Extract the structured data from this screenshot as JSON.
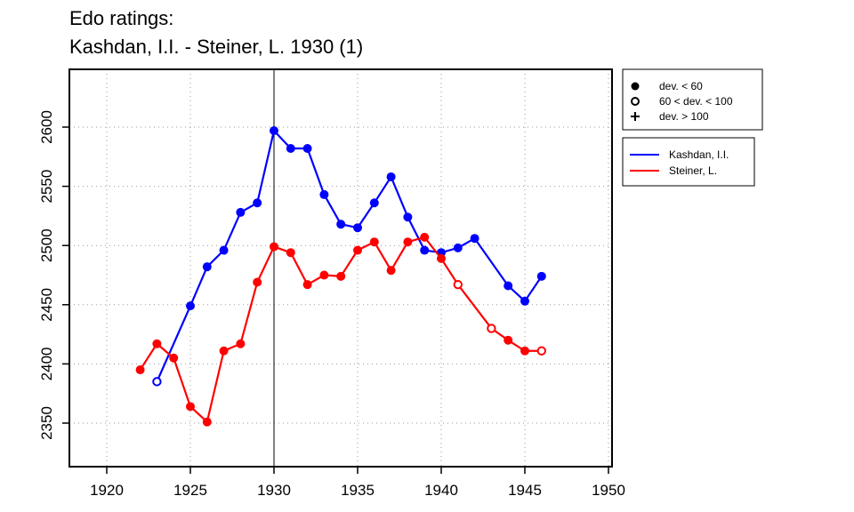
{
  "title_line1": "Edo ratings:",
  "title_line2": "Kashdan, I.I. - Steiner, L. 1930 (1)",
  "chart_data": {
    "type": "line",
    "xlim": [
      1918,
      1950
    ],
    "ylim": [
      2320,
      2650
    ],
    "x_ticks": [
      1920,
      1925,
      1930,
      1935,
      1940,
      1945,
      1950
    ],
    "y_ticks": [
      2350,
      2400,
      2450,
      2500,
      2550,
      2600
    ],
    "grid": true,
    "reference_line_x": 1930,
    "symbol_legend": [
      {
        "symbol": "filled-circle",
        "label": "dev. < 60"
      },
      {
        "symbol": "open-circle",
        "label": "60 < dev. < 100"
      },
      {
        "symbol": "plus",
        "label": "dev. > 100"
      }
    ],
    "series": [
      {
        "name": "Kashdan, I.I.",
        "color": "#0000ff",
        "points": [
          {
            "x": 1923,
            "y": 2385,
            "dev": "open"
          },
          {
            "x": 1925,
            "y": 2449,
            "dev": "filled"
          },
          {
            "x": 1926,
            "y": 2482,
            "dev": "filled"
          },
          {
            "x": 1927,
            "y": 2496,
            "dev": "filled"
          },
          {
            "x": 1928,
            "y": 2528,
            "dev": "filled"
          },
          {
            "x": 1929,
            "y": 2536,
            "dev": "filled"
          },
          {
            "x": 1930,
            "y": 2597,
            "dev": "filled"
          },
          {
            "x": 1931,
            "y": 2582,
            "dev": "filled"
          },
          {
            "x": 1932,
            "y": 2582,
            "dev": "filled"
          },
          {
            "x": 1933,
            "y": 2543,
            "dev": "filled"
          },
          {
            "x": 1934,
            "y": 2518,
            "dev": "filled"
          },
          {
            "x": 1935,
            "y": 2515,
            "dev": "filled"
          },
          {
            "x": 1936,
            "y": 2536,
            "dev": "filled"
          },
          {
            "x": 1937,
            "y": 2558,
            "dev": "filled"
          },
          {
            "x": 1938,
            "y": 2524,
            "dev": "filled"
          },
          {
            "x": 1939,
            "y": 2496,
            "dev": "filled"
          },
          {
            "x": 1940,
            "y": 2494,
            "dev": "filled"
          },
          {
            "x": 1941,
            "y": 2498,
            "dev": "filled"
          },
          {
            "x": 1942,
            "y": 2506,
            "dev": "filled"
          },
          {
            "x": 1944,
            "y": 2466,
            "dev": "filled"
          },
          {
            "x": 1945,
            "y": 2453,
            "dev": "filled"
          },
          {
            "x": 1946,
            "y": 2474,
            "dev": "filled"
          }
        ]
      },
      {
        "name": "Steiner, L.",
        "color": "#ff0000",
        "points": [
          {
            "x": 1922,
            "y": 2395,
            "dev": "filled"
          },
          {
            "x": 1923,
            "y": 2417,
            "dev": "filled"
          },
          {
            "x": 1924,
            "y": 2405,
            "dev": "filled"
          },
          {
            "x": 1925,
            "y": 2364,
            "dev": "filled"
          },
          {
            "x": 1926,
            "y": 2351,
            "dev": "filled"
          },
          {
            "x": 1927,
            "y": 2411,
            "dev": "filled"
          },
          {
            "x": 1928,
            "y": 2417,
            "dev": "filled"
          },
          {
            "x": 1929,
            "y": 2469,
            "dev": "filled"
          },
          {
            "x": 1930,
            "y": 2499,
            "dev": "filled"
          },
          {
            "x": 1931,
            "y": 2494,
            "dev": "filled"
          },
          {
            "x": 1932,
            "y": 2467,
            "dev": "filled"
          },
          {
            "x": 1933,
            "y": 2475,
            "dev": "filled"
          },
          {
            "x": 1934,
            "y": 2474,
            "dev": "filled"
          },
          {
            "x": 1935,
            "y": 2496,
            "dev": "filled"
          },
          {
            "x": 1936,
            "y": 2503,
            "dev": "filled"
          },
          {
            "x": 1937,
            "y": 2479,
            "dev": "filled"
          },
          {
            "x": 1938,
            "y": 2503,
            "dev": "filled"
          },
          {
            "x": 1939,
            "y": 2507,
            "dev": "filled"
          },
          {
            "x": 1940,
            "y": 2489,
            "dev": "filled"
          },
          {
            "x": 1941,
            "y": 2467,
            "dev": "open"
          },
          {
            "x": 1943,
            "y": 2430,
            "dev": "open"
          },
          {
            "x": 1944,
            "y": 2420,
            "dev": "filled"
          },
          {
            "x": 1945,
            "y": 2411,
            "dev": "filled"
          },
          {
            "x": 1946,
            "y": 2411,
            "dev": "open"
          }
        ]
      }
    ]
  }
}
